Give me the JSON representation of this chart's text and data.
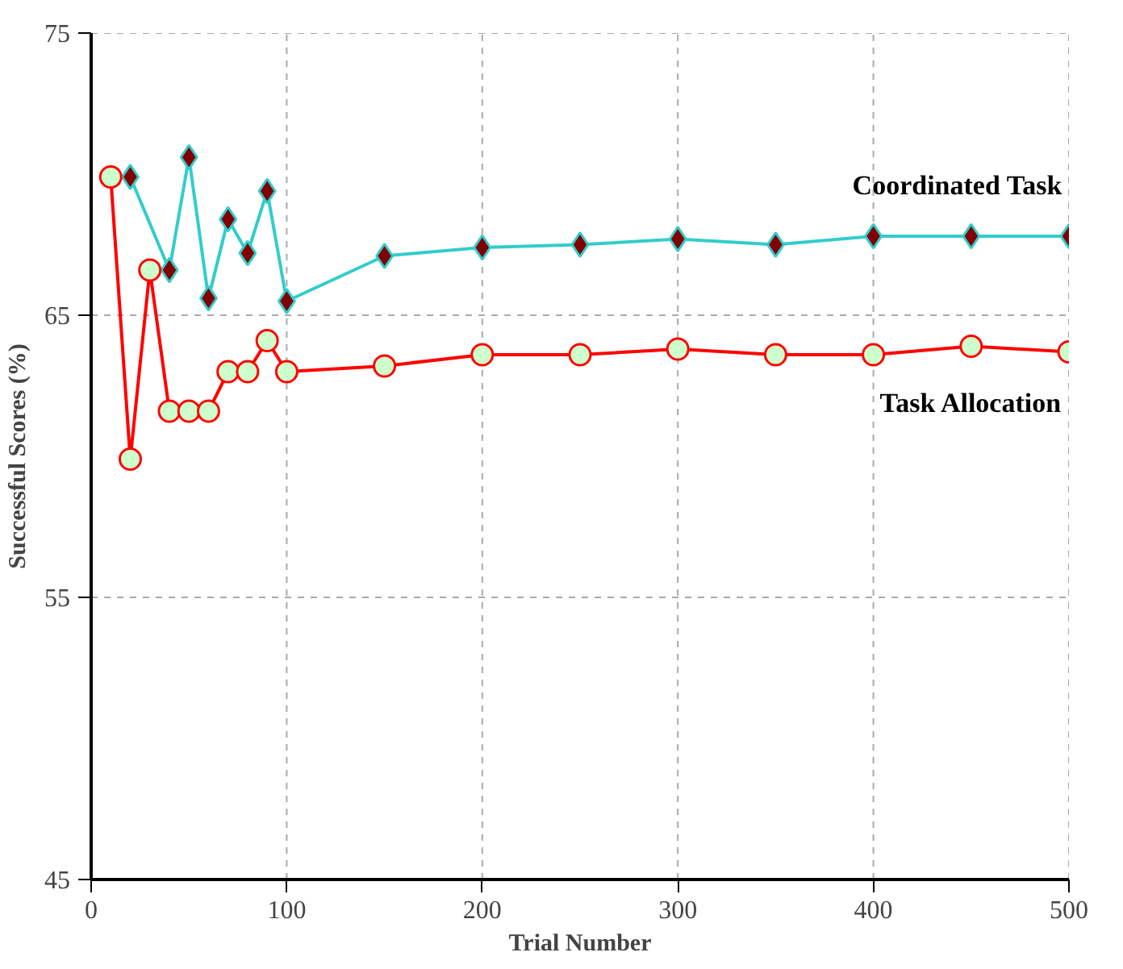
{
  "chart_data": {
    "type": "line",
    "xlabel": "Trial Number",
    "ylabel": "Successful Scores (%)",
    "xlim": [
      0,
      500
    ],
    "ylim": [
      45,
      75
    ],
    "xticks": [
      0,
      100,
      200,
      300,
      400,
      500
    ],
    "yticks": [
      45,
      55,
      65,
      75
    ],
    "grid": true,
    "legend": false,
    "series": [
      {
        "name": "Coordinated Task",
        "color": "#33cccc",
        "marker": "diamond",
        "x": [
          20,
          40,
          50,
          60,
          70,
          80,
          90,
          100,
          150,
          200,
          250,
          300,
          350,
          400,
          450,
          500
        ],
        "values": [
          69.9,
          66.6,
          70.6,
          65.6,
          68.4,
          67.2,
          69.4,
          65.5,
          67.1,
          67.4,
          67.5,
          67.7,
          67.5,
          67.8,
          67.8,
          67.8
        ]
      },
      {
        "name": "Task Allocation",
        "color": "#ff0000",
        "marker": "circle",
        "x": [
          10,
          20,
          30,
          40,
          50,
          60,
          70,
          80,
          90,
          100,
          150,
          200,
          250,
          300,
          350,
          400,
          450,
          500
        ],
        "values": [
          69.9,
          59.9,
          66.6,
          61.6,
          61.6,
          61.6,
          63.0,
          63.0,
          64.1,
          63.0,
          63.2,
          63.6,
          63.6,
          63.8,
          63.6,
          63.6,
          63.9,
          63.7
        ]
      }
    ]
  }
}
